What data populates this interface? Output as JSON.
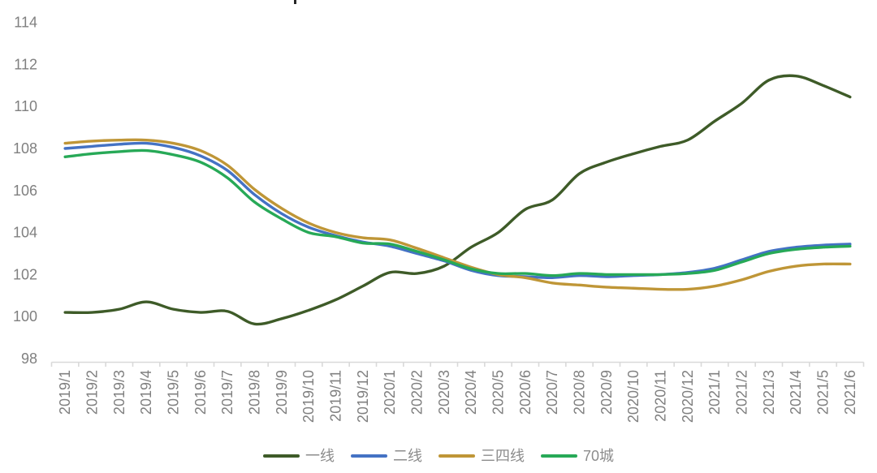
{
  "chart_data": {
    "type": "line",
    "title": "",
    "x": [
      "2019/1",
      "2019/2",
      "2019/3",
      "2019/4",
      "2019/5",
      "2019/6",
      "2019/7",
      "2019/8",
      "2019/9",
      "2019/10",
      "2019/11",
      "2019/12",
      "2020/1",
      "2020/2",
      "2020/3",
      "2020/4",
      "2020/5",
      "2020/6",
      "2020/7",
      "2020/8",
      "2020/9",
      "2020/10",
      "2020/11",
      "2020/12",
      "2021/1",
      "2021/2",
      "2021/3",
      "2021/4",
      "2021/5",
      "2021/6"
    ],
    "series": [
      {
        "name": "一线",
        "key": "tier1",
        "color": "#3E5B28",
        "values": [
          100.2,
          100.2,
          100.35,
          100.7,
          100.35,
          100.2,
          100.25,
          99.65,
          99.9,
          100.3,
          100.8,
          101.45,
          102.1,
          102.05,
          102.4,
          103.3,
          104.0,
          105.1,
          105.55,
          106.8,
          107.35,
          107.75,
          108.1,
          108.4,
          109.3,
          110.15,
          111.25,
          111.45,
          111.0,
          110.45
        ]
      },
      {
        "name": "二线",
        "key": "tier2",
        "color": "#4472C4",
        "values": [
          108.0,
          108.1,
          108.2,
          108.25,
          108.05,
          107.65,
          106.95,
          105.8,
          104.9,
          104.25,
          103.85,
          103.55,
          103.35,
          103.0,
          102.65,
          102.2,
          101.95,
          101.9,
          101.85,
          101.95,
          101.9,
          101.95,
          102.0,
          102.1,
          102.3,
          102.7,
          103.1,
          103.3,
          103.4,
          103.45
        ]
      },
      {
        "name": "三四线",
        "key": "tier34",
        "color": "#BF9637",
        "values": [
          108.25,
          108.35,
          108.4,
          108.4,
          108.25,
          107.9,
          107.2,
          106.05,
          105.15,
          104.45,
          104.0,
          103.75,
          103.65,
          103.25,
          102.8,
          102.35,
          102.0,
          101.85,
          101.6,
          101.5,
          101.4,
          101.35,
          101.3,
          101.3,
          101.45,
          101.75,
          102.15,
          102.4,
          102.5,
          102.5
        ]
      },
      {
        "name": "70城",
        "key": "cities70",
        "color": "#27A957",
        "values": [
          107.6,
          107.75,
          107.85,
          107.9,
          107.7,
          107.35,
          106.6,
          105.45,
          104.65,
          104.0,
          103.8,
          103.5,
          103.45,
          103.1,
          102.7,
          102.27,
          102.05,
          102.05,
          101.95,
          102.05,
          102.0,
          102.0,
          102.0,
          102.05,
          102.2,
          102.6,
          103.0,
          103.2,
          103.3,
          103.35
        ]
      }
    ],
    "ylim": [
      98,
      114
    ],
    "yticks": [
      98,
      100,
      102,
      104,
      106,
      108,
      110,
      112,
      114
    ],
    "grid": false,
    "legend_position": "bottom",
    "colors": {
      "axis_line": "#D9D9D9",
      "tick": "#D9D9D9",
      "axis_label": "#808080",
      "legend_label": "#8C8C8C",
      "title_remnant": "#262626"
    }
  }
}
